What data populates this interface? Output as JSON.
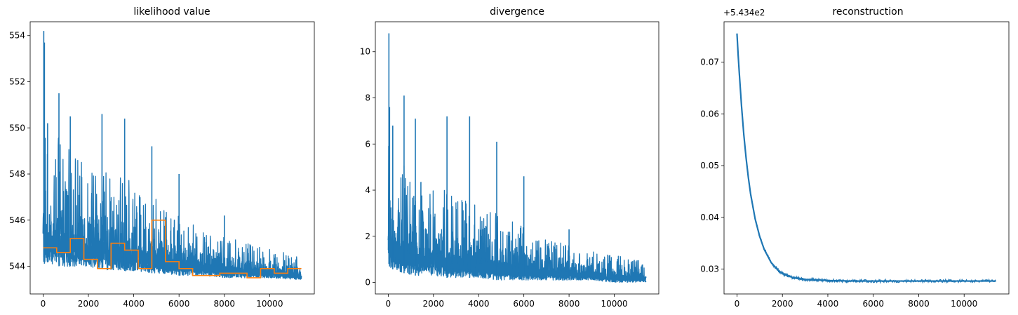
{
  "chart_data": [
    {
      "type": "line",
      "title": "likelihood value",
      "xlabel": "",
      "ylabel": "",
      "xlim": [
        -570,
        11970
      ],
      "ylim": [
        542.8,
        554.6
      ],
      "xticks": [
        0,
        2000,
        4000,
        6000,
        8000,
        10000
      ],
      "xtick_labels": [
        "0",
        "2000",
        "4000",
        "6000",
        "8000",
        "10000"
      ],
      "yticks": [
        544,
        546,
        548,
        550,
        552,
        554
      ],
      "ytick_labels": [
        "544",
        "546",
        "548",
        "550",
        "552",
        "554"
      ],
      "grid": false,
      "colors": {
        "raw": "#1f77b4",
        "step": "#ff7f0e"
      },
      "raw_envelope": {
        "x": [
          0,
          30,
          50,
          150,
          300,
          700,
          1200,
          1600,
          2000,
          2600,
          3000,
          3600,
          4000,
          4800,
          5200,
          6000,
          6600,
          7000,
          8000,
          9000,
          10000,
          11400
        ],
        "lower": [
          544.4,
          544.2,
          544.1,
          544.2,
          544.1,
          544.0,
          544.0,
          544.0,
          543.9,
          543.9,
          543.8,
          543.8,
          543.8,
          543.7,
          543.7,
          543.6,
          543.6,
          543.6,
          543.5,
          543.5,
          543.5,
          543.4
        ],
        "upper": [
          549.4,
          554.2,
          553.7,
          549.0,
          548.5,
          549.8,
          549.0,
          548.6,
          548.2,
          548.6,
          547.9,
          548.0,
          547.5,
          547.2,
          546.9,
          546.3,
          545.9,
          545.6,
          545.3,
          545.0,
          544.8,
          544.4
        ]
      },
      "spikes": [
        {
          "x": 30,
          "y": 554.2
        },
        {
          "x": 60,
          "y": 553.7
        },
        {
          "x": 200,
          "y": 550.2
        },
        {
          "x": 700,
          "y": 551.5
        },
        {
          "x": 1200,
          "y": 550.5
        },
        {
          "x": 2600,
          "y": 550.6
        },
        {
          "x": 3600,
          "y": 550.4
        },
        {
          "x": 4800,
          "y": 549.2
        },
        {
          "x": 6000,
          "y": 548.0
        },
        {
          "x": 8000,
          "y": 546.2
        }
      ],
      "step_series": {
        "x": [
          0,
          600,
          1200,
          1800,
          2400,
          3000,
          3600,
          4200,
          4800,
          5400,
          6000,
          6600,
          7200,
          7800,
          8400,
          9000,
          9600,
          10200,
          10800,
          11400
        ],
        "y": [
          544.8,
          544.6,
          545.2,
          544.3,
          543.9,
          545.0,
          544.7,
          543.9,
          546.0,
          544.2,
          543.9,
          543.6,
          543.6,
          543.7,
          543.7,
          543.5,
          543.9,
          543.7,
          543.9,
          543.9
        ]
      }
    },
    {
      "type": "line",
      "title": "divergence",
      "xlabel": "",
      "ylabel": "",
      "xlim": [
        -570,
        11970
      ],
      "ylim": [
        -0.5,
        11.3
      ],
      "xticks": [
        0,
        2000,
        4000,
        6000,
        8000,
        10000
      ],
      "xtick_labels": [
        "0",
        "2000",
        "4000",
        "6000",
        "8000",
        "10000"
      ],
      "yticks": [
        0,
        2,
        4,
        6,
        8,
        10
      ],
      "ytick_labels": [
        "0",
        "2",
        "4",
        "6",
        "8",
        "10"
      ],
      "grid": false,
      "colors": {
        "raw": "#1f77b4"
      },
      "raw_envelope": {
        "x": [
          0,
          30,
          50,
          150,
          300,
          700,
          1200,
          1600,
          2000,
          2600,
          3000,
          3600,
          4000,
          4800,
          5200,
          6000,
          6600,
          7000,
          8000,
          9000,
          10000,
          11400
        ],
        "lower": [
          1.0,
          0.8,
          0.7,
          0.6,
          0.5,
          0.4,
          0.3,
          0.3,
          0.3,
          0.2,
          0.2,
          0.2,
          0.2,
          0.1,
          0.1,
          0.1,
          0.1,
          0.1,
          0.1,
          0.1,
          0.0,
          0.0
        ],
        "upper": [
          5.0,
          7.6,
          7.0,
          5.2,
          4.8,
          5.1,
          4.6,
          4.3,
          4.0,
          4.1,
          3.7,
          3.7,
          3.3,
          3.0,
          2.8,
          2.4,
          2.1,
          1.9,
          1.6,
          1.4,
          1.2,
          0.9
        ]
      },
      "spikes": [
        {
          "x": 30,
          "y": 10.8
        },
        {
          "x": 60,
          "y": 7.6
        },
        {
          "x": 200,
          "y": 6.8
        },
        {
          "x": 700,
          "y": 8.1
        },
        {
          "x": 1200,
          "y": 7.1
        },
        {
          "x": 2600,
          "y": 7.2
        },
        {
          "x": 3600,
          "y": 7.2
        },
        {
          "x": 4800,
          "y": 6.1
        },
        {
          "x": 6000,
          "y": 4.6
        },
        {
          "x": 8000,
          "y": 2.3
        }
      ]
    },
    {
      "type": "line",
      "title": "reconstruction",
      "xlabel": "",
      "ylabel": "",
      "offset_text": "+5.434e2",
      "xlim": [
        -570,
        11970
      ],
      "ylim": [
        0.0252,
        0.0778
      ],
      "xticks": [
        0,
        2000,
        4000,
        6000,
        8000,
        10000
      ],
      "xtick_labels": [
        "0",
        "2000",
        "4000",
        "6000",
        "8000",
        "10000"
      ],
      "yticks": [
        0.03,
        0.04,
        0.05,
        0.06,
        0.07
      ],
      "ytick_labels": [
        "0.03",
        "0.04",
        "0.05",
        "0.06",
        "0.07"
      ],
      "grid": false,
      "colors": {
        "raw": "#1f77b4"
      },
      "series": [
        {
          "x": [
            0,
            50,
            100,
            200,
            300,
            400,
            500,
            600,
            800,
            1000,
            1200,
            1500,
            1800,
            2000,
            2500,
            3000,
            3500,
            4000,
            5000,
            6000,
            7000,
            8000,
            9000,
            10000,
            11400
          ],
          "y": [
            0.0755,
            0.0715,
            0.068,
            0.0615,
            0.056,
            0.0515,
            0.0477,
            0.0445,
            0.0397,
            0.0363,
            0.0338,
            0.0313,
            0.0298,
            0.0291,
            0.0283,
            0.028,
            0.0279,
            0.0278,
            0.0277,
            0.0277,
            0.0277,
            0.0277,
            0.0277,
            0.0277,
            0.0277
          ]
        }
      ]
    }
  ]
}
